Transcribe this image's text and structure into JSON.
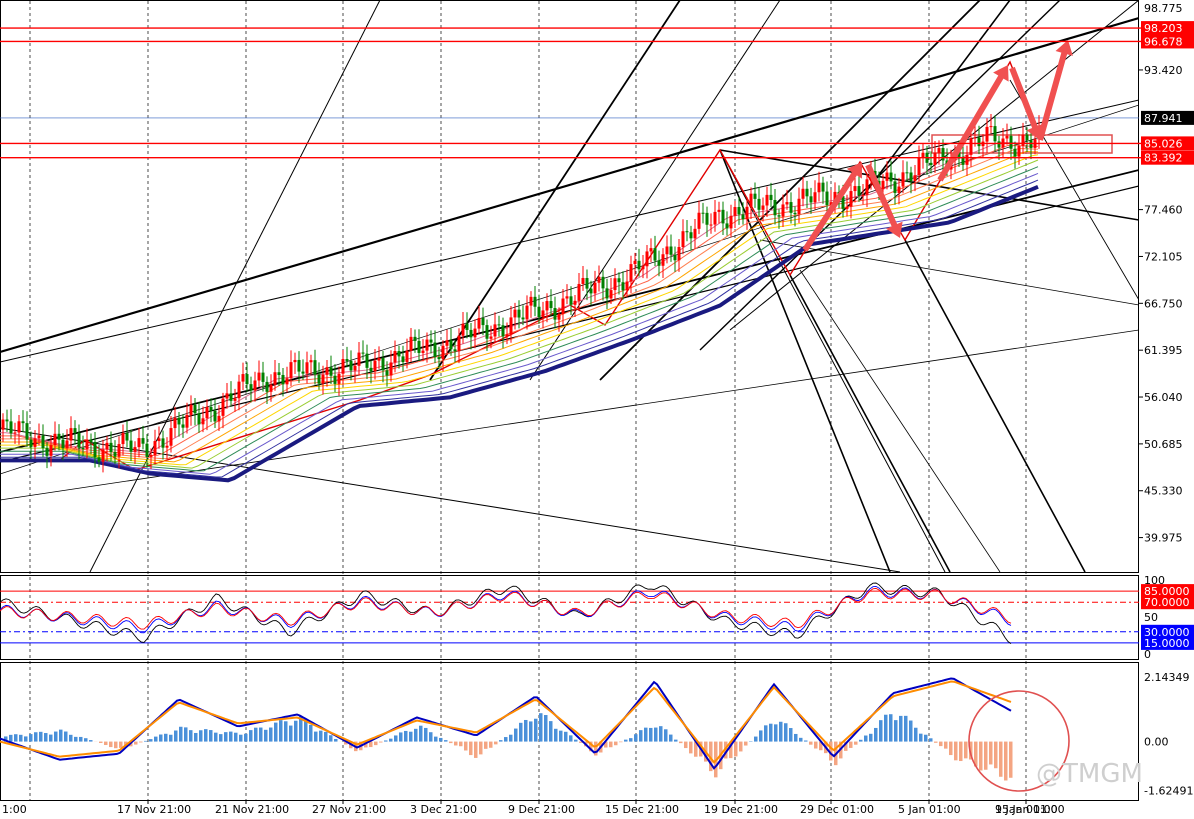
{
  "watermark": "@TMGM",
  "chart_data": [
    {
      "type": "line",
      "panel": "price",
      "x": [
        "17 Nov 21:00",
        "21 Nov 21:00",
        "27 Nov 21:00",
        "3 Dec 21:00",
        "9 Dec 21:00",
        "15 Dec 21:00",
        "19 Dec 21:00",
        "29 Dec 01:00",
        "5 Jan 01:00",
        "9 Jan 01:00",
        "15 Jan 01:00"
      ],
      "x_first_label": "1:00",
      "y_ticks": [
        93.42,
        77.46,
        72.105,
        66.75,
        61.395,
        56.04,
        50.685,
        45.33,
        39.975
      ],
      "y_ticks_text": [
        "93.420",
        "77.460",
        "72.105",
        "66.750",
        "61.395",
        "56.040",
        "50.685",
        "45.330",
        "39.975"
      ],
      "top_tick_text": "98.775",
      "ylim": [
        36.5,
        100.5
      ],
      "close_path": {
        "label_at": [
          "start",
          "17 Nov",
          "21 Nov",
          "27 Nov",
          "3 Dec",
          "9 Dec",
          "15 Dec",
          "19 Dec",
          "29 Dec",
          "5 Jan",
          "9 Jan",
          "15 Jan"
        ],
        "values": [
          52.3,
          50.8,
          50.0,
          58.5,
          59.5,
          62.5,
          66.0,
          70.0,
          77.0,
          79.5,
          85.5,
          85.3
        ]
      },
      "marked_levels": [
        {
          "value": 98.203,
          "text": "98.203",
          "color": "#ff0000"
        },
        {
          "value": 96.678,
          "text": "96.678",
          "color": "#ff0000"
        },
        {
          "value": 85.026,
          "text": "85.026",
          "color": "#ff0000"
        },
        {
          "value": 83.392,
          "text": "83.392",
          "color": "#ff0000"
        }
      ],
      "current_price": {
        "value": 87.941,
        "text": "87.941"
      },
      "colors": {
        "bull": "#ff0000",
        "bear": "#008000",
        "level": "#e00000",
        "arrow": "#f05050"
      }
    },
    {
      "type": "line",
      "panel": "rsi",
      "ylim": [
        0,
        100
      ],
      "top_label": "100",
      "mid_label": "50",
      "bottom_label": "0",
      "levels": [
        {
          "value": 85,
          "text": "85.0000",
          "color": "#ff0000"
        },
        {
          "value": 70,
          "text": "70.0000",
          "color": "#ff0000"
        },
        {
          "value": 30,
          "text": "30.0000",
          "color": "#0000ff"
        },
        {
          "value": 15,
          "text": "15.0000",
          "color": "#0000ff"
        }
      ],
      "series": [
        {
          "color": "#000000",
          "values": [
            70,
            45,
            22,
            75,
            30,
            80,
            55,
            90,
            50,
            95,
            45,
            25,
            90,
            82,
            20
          ]
        },
        {
          "color": "#0000ff",
          "values": [
            60,
            48,
            35,
            65,
            42,
            72,
            55,
            82,
            52,
            85,
            50,
            35,
            85,
            80,
            45
          ]
        },
        {
          "color": "#ff0000",
          "values": [
            58,
            50,
            40,
            62,
            45,
            70,
            56,
            80,
            54,
            82,
            52,
            40,
            82,
            80,
            48
          ]
        }
      ]
    },
    {
      "type": "bar",
      "panel": "macd",
      "ylim": [
        -1.8,
        2.5
      ],
      "y_ticks_text": [
        "2.14349",
        "0.00",
        "-1.62491"
      ],
      "y_ticks": [
        2.14349,
        0.0,
        -1.62491
      ],
      "histogram": [
        0.2,
        0.4,
        -0.3,
        0.5,
        0.3,
        0.9,
        -0.4,
        0.6,
        -0.6,
        1.1,
        -0.5,
        0.7,
        -1.2,
        0.9,
        -0.8,
        1.2,
        -0.6,
        -1.4
      ],
      "signal_lines": [
        {
          "color": "#0000c0",
          "values": [
            0.1,
            -0.6,
            -0.4,
            1.4,
            0.5,
            0.9,
            -0.2,
            0.8,
            0.2,
            1.5,
            -0.4,
            2.0,
            -0.9,
            1.9,
            -0.5,
            1.6,
            2.1,
            1.0
          ]
        },
        {
          "color": "#ff8c00",
          "values": [
            0.0,
            -0.5,
            -0.3,
            1.3,
            0.6,
            0.8,
            -0.1,
            0.7,
            0.3,
            1.4,
            -0.2,
            1.8,
            -0.7,
            1.8,
            -0.3,
            1.5,
            2.0,
            1.3
          ]
        }
      ]
    }
  ]
}
